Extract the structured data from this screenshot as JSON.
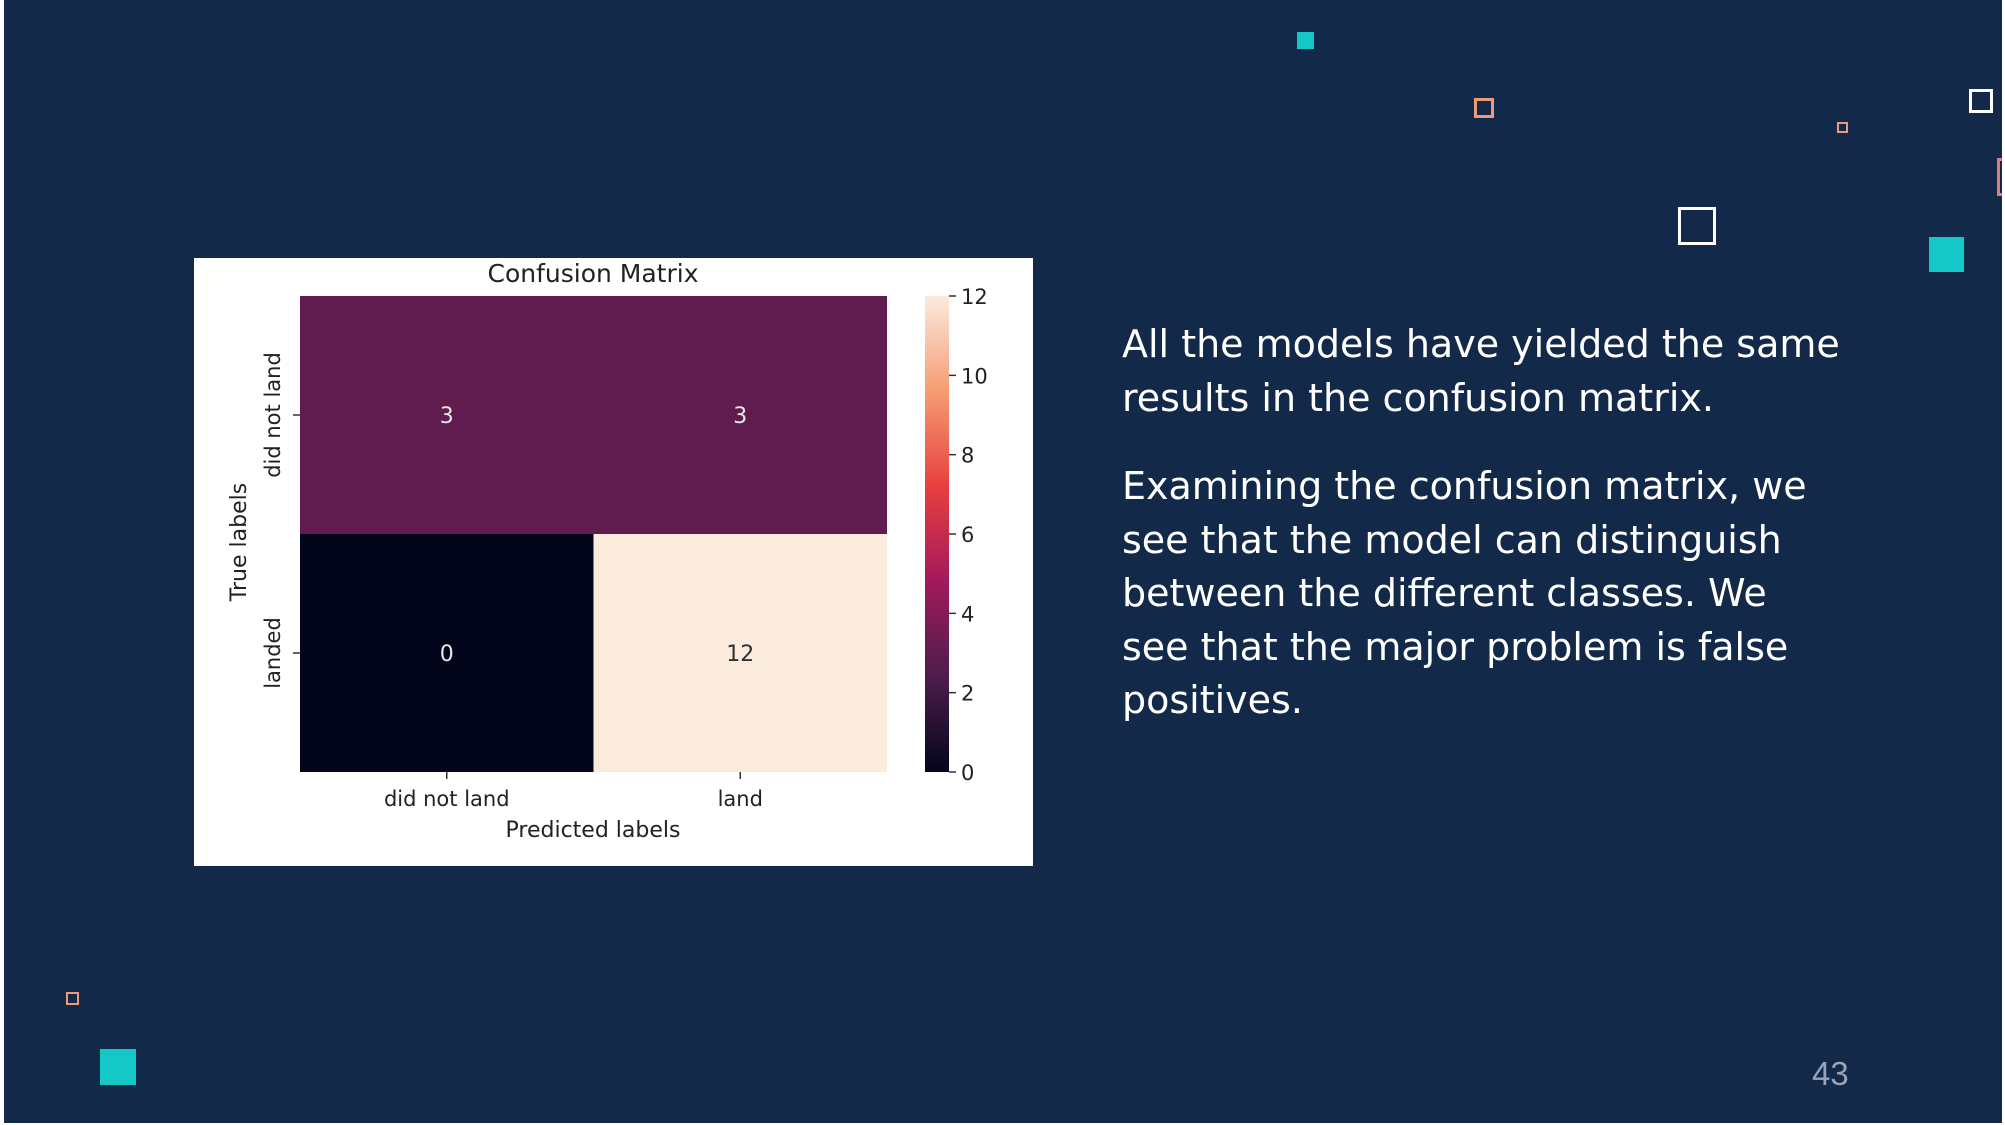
{
  "slide": {
    "paragraphs": [
      "All the models have yielded the same results in the confusion matrix.",
      "Examining the confusion matrix, we see that the model can distinguish between the different classes. We see that the major problem is false positives."
    ],
    "page_number": "43"
  },
  "colors": {
    "background": "#13294a",
    "teal_accent": "#14c8c8",
    "peach_accent": "#ee9a78",
    "text": "#ffffff"
  },
  "chart_data": {
    "type": "heatmap",
    "title": "Confusion Matrix",
    "xlabel": "Predicted labels",
    "ylabel": "True labels",
    "x_categories": [
      "did not land",
      "land"
    ],
    "y_categories": [
      "did not land",
      "landed"
    ],
    "values": [
      [
        3,
        3
      ],
      [
        0,
        12
      ]
    ],
    "colorbar": {
      "min": 0,
      "max": 12,
      "ticks": [
        0,
        2,
        4,
        6,
        8,
        10,
        12
      ],
      "colormap": "rocket",
      "stops": [
        "#03051a",
        "#4c1d4b",
        "#a11a5b",
        "#e83f3f",
        "#f69c73",
        "#faebdd"
      ]
    }
  }
}
